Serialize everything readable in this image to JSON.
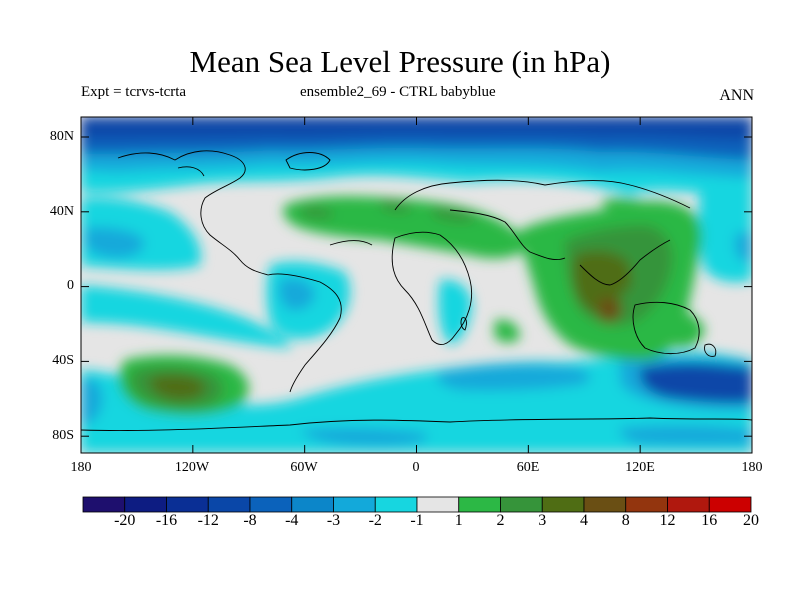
{
  "title": "Mean Sea Level Pressure (in hPa)",
  "subtitle_left": "Expt = tcrvs-tcrta",
  "subtitle_center": "ensemble2_69 - CTRL babyblue",
  "subtitle_right": "ANN",
  "lat_labels": [
    "80N",
    "40N",
    "0",
    "40S",
    "80S"
  ],
  "lon_labels": [
    "180",
    "120W",
    "60W",
    "0",
    "60E",
    "120E",
    "180"
  ],
  "colorbar": {
    "labels": [
      "-20",
      "-16",
      "-12",
      "-8",
      "-4",
      "-3",
      "-2",
      "-1",
      "1",
      "2",
      "3",
      "4",
      "8",
      "12",
      "16",
      "20"
    ],
    "colors": [
      "#1e0f6e",
      "#0d1c82",
      "#0a2f95",
      "#0a47a8",
      "#0b62bb",
      "#0c86c9",
      "#13a9da",
      "#17d6e0",
      "#e5e5e5",
      "#2cb845",
      "#36943a",
      "#4f6d14",
      "#6a4f14",
      "#93350e",
      "#b0180e",
      "#cc0000"
    ]
  }
}
